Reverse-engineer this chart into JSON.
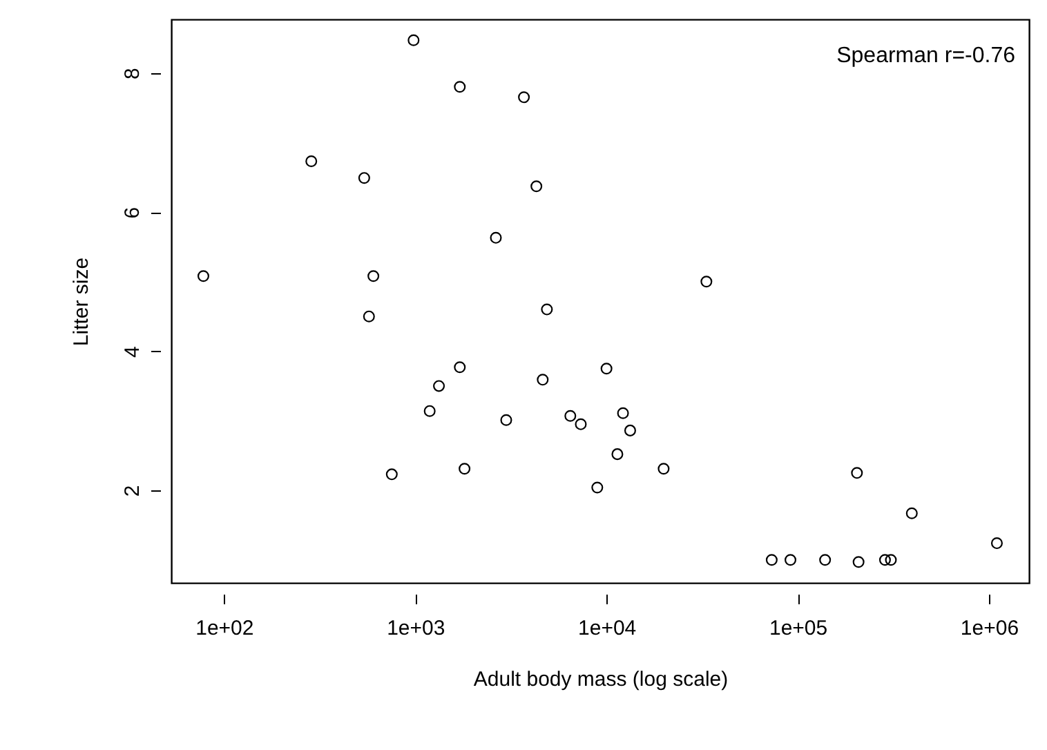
{
  "chart_data": {
    "type": "scatter",
    "xlabel": "Adult body mass (log scale)",
    "ylabel": "Litter size",
    "log": "x",
    "marker": "circle",
    "grid": false,
    "xlim": [
      53,
      1620000
    ],
    "ylim": [
      0.67,
      8.77
    ],
    "xticks": [
      {
        "value": 100,
        "label": "1e+02"
      },
      {
        "value": 1000,
        "label": "1e+03"
      },
      {
        "value": 10000,
        "label": "1e+04"
      },
      {
        "value": 100000,
        "label": "1e+05"
      },
      {
        "value": 1000000,
        "label": "1e+06"
      }
    ],
    "yticks": [
      2,
      4,
      6,
      8
    ],
    "annotations": [
      "Spearman r=-0.76"
    ],
    "series": [
      {
        "color": "#000000",
        "x": [
          980,
          1710,
          3700,
          286,
          541,
          4300,
          2640,
          78,
          604,
          573,
          4880,
          1710,
          1330,
          4640,
          1190,
          2990,
          6470,
          7340,
          754,
          1810,
          8950,
          10000,
          33300,
          12200,
          13300,
          11400,
          19900,
          204000,
          395000,
          1100000,
          73100,
          91600,
          139000,
          208000,
          286000,
          307000
        ],
        "values": [
          8.47,
          7.8,
          7.65,
          6.73,
          6.49,
          6.37,
          5.63,
          5.08,
          5.08,
          4.5,
          4.6,
          3.77,
          3.5,
          3.59,
          3.14,
          3.01,
          3.07,
          2.95,
          2.23,
          2.31,
          2.04,
          3.75,
          5.0,
          3.11,
          2.86,
          2.52,
          2.31,
          2.25,
          1.67,
          1.24,
          1.0,
          1.0,
          1.0,
          0.97,
          1.0,
          1.0
        ]
      }
    ]
  }
}
